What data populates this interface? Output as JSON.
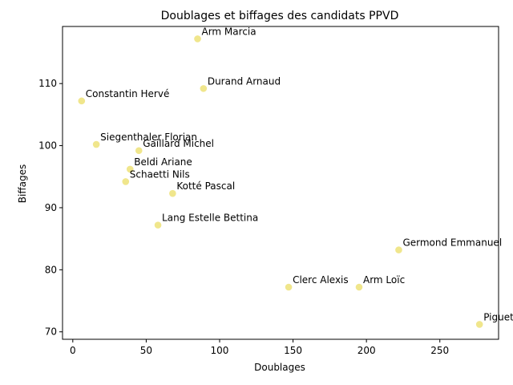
{
  "chart_data": {
    "type": "scatter",
    "title": "Doublages et biffages des candidats PPVD",
    "xlabel": "Doublages",
    "ylabel": "Biffages",
    "xlim": [
      -7,
      290
    ],
    "ylim": [
      68.8,
      119.2
    ],
    "xticks": [
      0,
      50,
      100,
      150,
      200,
      250
    ],
    "yticks": [
      70,
      80,
      90,
      100,
      110
    ],
    "grid": false,
    "point_color": "#f0e68c",
    "points": [
      {
        "label": "Arm Marcia",
        "x": 85,
        "y": 117.2
      },
      {
        "label": "Durand Arnaud",
        "x": 89,
        "y": 109.2
      },
      {
        "label": "Constantin Hervé",
        "x": 6,
        "y": 107.2
      },
      {
        "label": "Siegenthaler Florian",
        "x": 16,
        "y": 100.2
      },
      {
        "label": "Gaillard Michel",
        "x": 45,
        "y": 99.2
      },
      {
        "label": "Beldi Ariane",
        "x": 39,
        "y": 96.2
      },
      {
        "label": "Schaetti Nils",
        "x": 36,
        "y": 94.2
      },
      {
        "label": "Kotté Pascal",
        "x": 68,
        "y": 92.3
      },
      {
        "label": "Lang Estelle Bettina",
        "x": 58,
        "y": 87.2
      },
      {
        "label": "Germond Emmanuel",
        "x": 222,
        "y": 83.2
      },
      {
        "label": "Clerc Alexis",
        "x": 147,
        "y": 77.2
      },
      {
        "label": "Arm Loïc",
        "x": 195,
        "y": 77.2
      },
      {
        "label": "Piguet",
        "x": 277,
        "y": 71.2
      }
    ]
  }
}
